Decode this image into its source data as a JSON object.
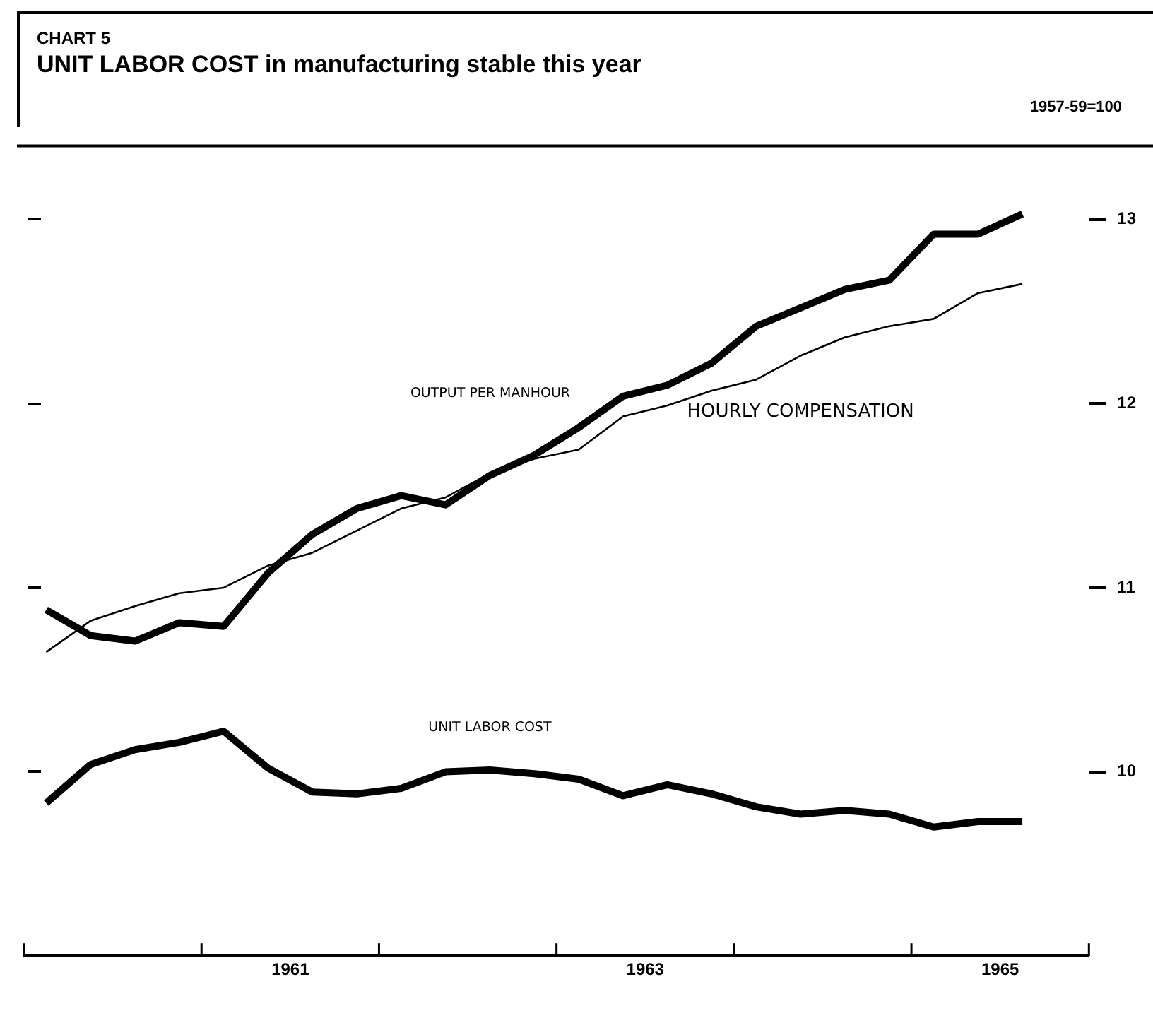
{
  "chart_data": {
    "type": "line",
    "subtitle": "CHART 5",
    "title": "UNIT LABOR COST in manufacturing stable this year",
    "annotations": [
      "1957-59=100"
    ],
    "x": [
      1960.125,
      1960.375,
      1960.625,
      1960.875,
      1961.125,
      1961.375,
      1961.625,
      1961.875,
      1962.125,
      1962.375,
      1962.625,
      1962.875,
      1963.125,
      1963.375,
      1963.625,
      1963.875,
      1964.125,
      1964.375,
      1964.625,
      1964.875,
      1965.125,
      1965.375,
      1965.625
    ],
    "series": [
      {
        "name": "OUTPUT PER MANHOUR",
        "color": "#000000",
        "values": [
          10.88,
          10.74,
          10.71,
          10.81,
          10.79,
          11.08,
          11.29,
          11.43,
          11.5,
          11.45,
          11.61,
          11.72,
          11.87,
          12.04,
          12.1,
          12.22,
          12.42,
          12.52,
          12.62,
          12.67,
          12.92,
          12.92,
          13.03
        ]
      },
      {
        "name": "HOURLY COMPENSATION",
        "color": "#000000",
        "values": [
          10.65,
          10.82,
          10.9,
          10.97,
          11.0,
          11.12,
          11.19,
          11.31,
          11.43,
          11.49,
          11.62,
          11.7,
          11.75,
          11.93,
          11.99,
          12.07,
          12.13,
          12.26,
          12.36,
          12.42,
          12.46,
          12.6,
          12.65
        ]
      },
      {
        "name": "UNIT LABOR COST",
        "color": "#000000",
        "values": [
          9.83,
          10.04,
          10.12,
          10.16,
          10.22,
          10.02,
          9.89,
          9.88,
          9.91,
          10.0,
          10.01,
          9.99,
          9.96,
          9.87,
          9.93,
          9.88,
          9.81,
          9.77,
          9.79,
          9.77,
          9.7,
          9.73,
          9.73
        ]
      }
    ],
    "xlim": [
      1960,
      1966
    ],
    "xticks": [
      {
        "value": 1960,
        "label": null
      },
      {
        "value": 1961,
        "label": null
      },
      {
        "value": 1961.5,
        "label": "1961"
      },
      {
        "value": 1962,
        "label": null
      },
      {
        "value": 1963,
        "label": null
      },
      {
        "value": 1963.5,
        "label": "1963"
      },
      {
        "value": 1964,
        "label": null
      },
      {
        "value": 1965,
        "label": null
      },
      {
        "value": 1965.5,
        "label": "1965"
      },
      {
        "value": 1966,
        "label": null
      }
    ],
    "ylim": [
      9,
      13.4
    ],
    "yticks": [
      10,
      11,
      12,
      13
    ],
    "legend": false,
    "grid": false,
    "marker": "none",
    "line_style": "solid"
  }
}
